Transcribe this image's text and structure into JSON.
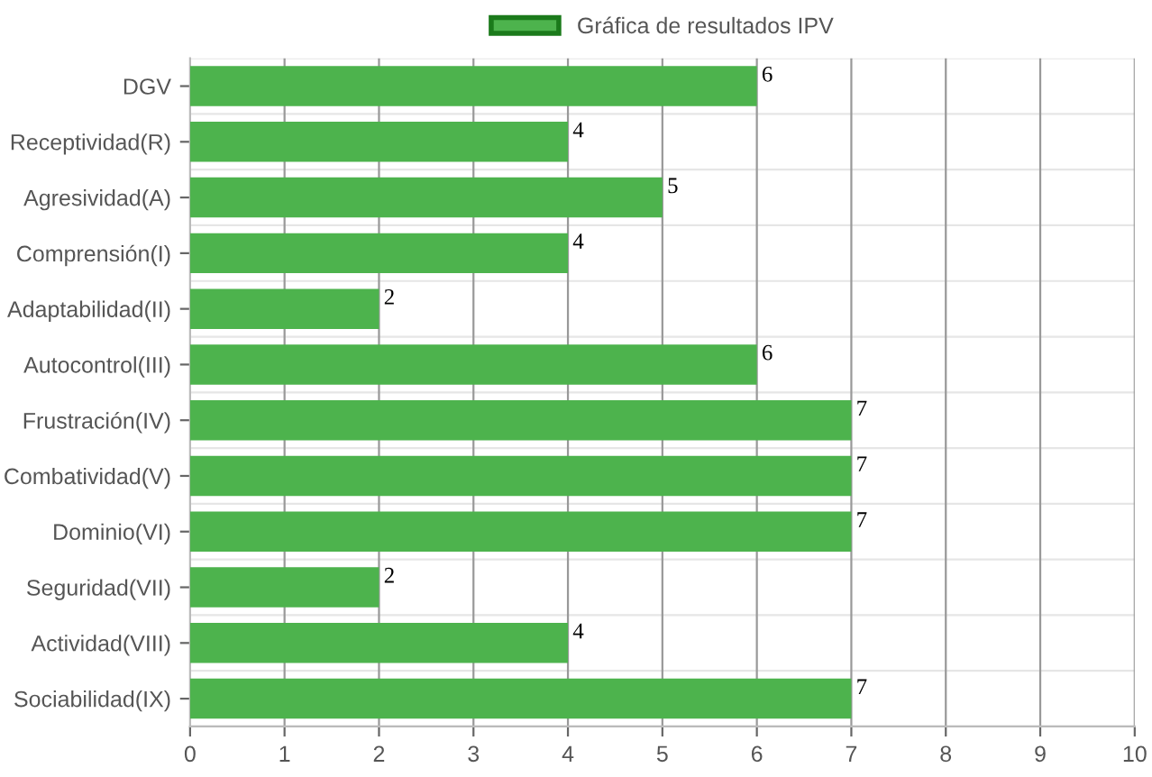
{
  "chart_data": {
    "type": "bar",
    "orientation": "horizontal",
    "categories": [
      "DGV",
      "Receptividad(R)",
      "Agresividad(A)",
      "Comprensión(I)",
      "Adaptabilidad(II)",
      "Autocontrol(III)",
      "Frustración(IV)",
      "Combatividad(V)",
      "Dominio(VI)",
      "Seguridad(VII)",
      "Actividad(VIII)",
      "Sociabilidad(IX)"
    ],
    "series": [
      {
        "name": "Gráfica de resultados IPV",
        "color": "#4db34d",
        "values": [
          6,
          4,
          5,
          4,
          2,
          6,
          7,
          7,
          7,
          2,
          4,
          7
        ]
      }
    ],
    "xlim": [
      0,
      10
    ],
    "xticks": [
      0,
      1,
      2,
      3,
      4,
      5,
      6,
      7,
      8,
      9,
      10
    ],
    "grid": true,
    "legend": "top",
    "data_labels": true
  }
}
